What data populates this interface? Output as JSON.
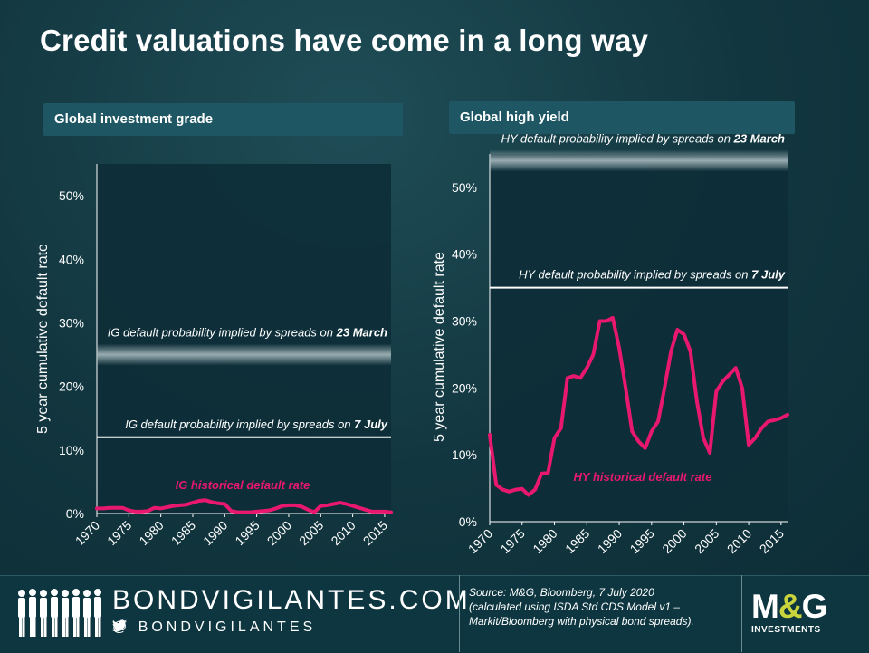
{
  "title": "Credit valuations have come in a long way",
  "panels": {
    "left_title": "Global  investment  grade",
    "right_title": "Global  high  yield"
  },
  "footer": {
    "brand": "BONDVIGILANTES.COM",
    "handle": "@ BONDVIGILANTES",
    "source_lines": [
      "Source: M&G, Bloomberg, 7 July 2020",
      "(calculated using ISDA Std CDS Model v1 –",
      "Markit/Bloomberg with physical bond spreads)."
    ],
    "logo_main_1": "M",
    "logo_amp": "&",
    "logo_main_2": "G",
    "logo_sub": "INVESTMENTS",
    "twitter_icon": "twitter-bird-icon"
  },
  "colors": {
    "series": "#e8186f",
    "reference": "#ffffff",
    "band": "#b0c2c6"
  },
  "chart_data": [
    {
      "type": "line",
      "title": "Global  investment  grade",
      "ylabel": "5 year cumulative default rate",
      "xlabel": "",
      "ylim": [
        0,
        55
      ],
      "xlim": [
        1970,
        2016
      ],
      "yticks": [
        0,
        10,
        20,
        30,
        40,
        50
      ],
      "ytick_labels": [
        "0%",
        "10%",
        "20%",
        "30%",
        "40%",
        "50%"
      ],
      "xticks": [
        1970,
        1975,
        1980,
        1985,
        1990,
        1995,
        2000,
        2005,
        2010,
        2015
      ],
      "series": [
        {
          "name": "IG historical default rate",
          "x": [
            1970,
            1971,
            1972,
            1973,
            1974,
            1975,
            1976,
            1977,
            1978,
            1979,
            1980,
            1981,
            1982,
            1983,
            1984,
            1985,
            1986,
            1987,
            1988,
            1989,
            1990,
            1991,
            1992,
            1993,
            1994,
            1995,
            1996,
            1997,
            1998,
            1999,
            2000,
            2001,
            2002,
            2003,
            2004,
            2005,
            2006,
            2007,
            2008,
            2009,
            2010,
            2011,
            2012,
            2013,
            2014,
            2015,
            2016
          ],
          "y": [
            0.8,
            0.8,
            0.9,
            0.9,
            0.9,
            0.5,
            0.3,
            0.3,
            0.4,
            0.9,
            0.8,
            1.0,
            1.2,
            1.3,
            1.4,
            1.7,
            2.0,
            2.1,
            1.8,
            1.6,
            1.5,
            0.4,
            0.2,
            0.2,
            0.2,
            0.3,
            0.4,
            0.5,
            0.8,
            1.2,
            1.3,
            1.3,
            1.1,
            0.6,
            0.2,
            1.2,
            1.3,
            1.5,
            1.7,
            1.5,
            1.2,
            0.9,
            0.6,
            0.3,
            0.3,
            0.3,
            0.2
          ]
        }
      ],
      "references": [
        {
          "label_prefix": "IG default probability implied by spreads on ",
          "label_date": "7 July",
          "value": 12
        },
        {
          "label_prefix": "IG default probability implied by spreads on ",
          "label_date": "23 March",
          "value": 25,
          "style": "band"
        }
      ],
      "series_label": "IG historical default rate",
      "grid": false
    },
    {
      "type": "line",
      "title": "Global  high  yield",
      "ylabel": "5 year cumulative default rate",
      "xlabel": "",
      "ylim": [
        0,
        55
      ],
      "xlim": [
        1970,
        2016
      ],
      "yticks": [
        0,
        10,
        20,
        30,
        40,
        50
      ],
      "ytick_labels": [
        "0%",
        "10%",
        "20%",
        "30%",
        "40%",
        "50%"
      ],
      "xticks": [
        1970,
        1975,
        1980,
        1985,
        1990,
        1995,
        2000,
        2005,
        2010,
        2015
      ],
      "series": [
        {
          "name": "HY historical default rate",
          "x": [
            1970,
            1971,
            1972,
            1973,
            1974,
            1975,
            1976,
            1977,
            1978,
            1979,
            1980,
            1981,
            1982,
            1983,
            1984,
            1985,
            1986,
            1987,
            1988,
            1989,
            1990,
            1991,
            1992,
            1993,
            1994,
            1995,
            1996,
            1997,
            1998,
            1999,
            2000,
            2001,
            2002,
            2003,
            2004,
            2005,
            2006,
            2007,
            2008,
            2009,
            2010,
            2011,
            2012,
            2013,
            2014,
            2015,
            2016
          ],
          "y": [
            13,
            5.5,
            4.8,
            4.5,
            4.8,
            4.9,
            4,
            4.8,
            7.2,
            7.3,
            12.5,
            14,
            21.5,
            21.8,
            21.5,
            23,
            25,
            30,
            30,
            30.5,
            26,
            20,
            13.5,
            12,
            11,
            13.5,
            15,
            20,
            25.5,
            28.7,
            28,
            25.5,
            18,
            12.5,
            10.3,
            19.5,
            21,
            22,
            23,
            20,
            11.5,
            12.5,
            14,
            15,
            15.2,
            15.5,
            16
          ]
        }
      ],
      "references": [
        {
          "label_prefix": "HY default probability implied by spreads on ",
          "label_date": "7 July",
          "value": 35
        },
        {
          "label_prefix": "HY default probability implied by spreads on ",
          "label_date": "23 March",
          "value": 54,
          "style": "band"
        }
      ],
      "series_label": "HY historical default rate",
      "grid": false
    }
  ]
}
